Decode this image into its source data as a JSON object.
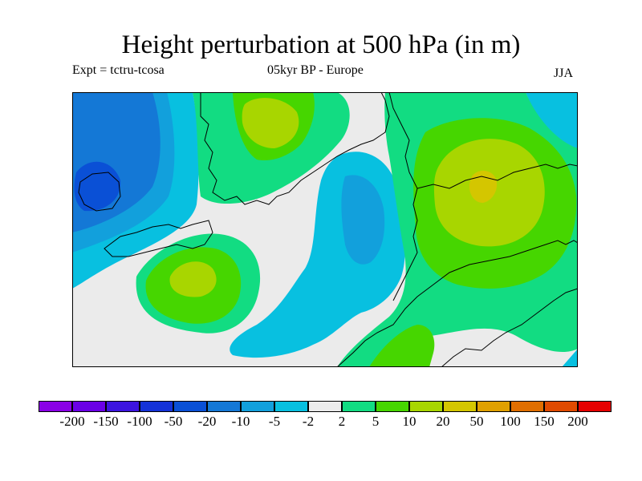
{
  "title": "Height perturbation at 500 hPa (in m)",
  "subtitle_left": "Expt = tctru-tcosa",
  "subtitle_center": "05kyr BP - Europe",
  "subtitle_right": "JJA",
  "colorbar": {
    "colors": [
      "#8a00e6",
      "#6a00e6",
      "#3c14e0",
      "#1432d8",
      "#0a50d6",
      "#1478d6",
      "#12a0dc",
      "#08c0e0",
      "#ebebeb",
      "#12dc82",
      "#46d600",
      "#a8d600",
      "#d4c600",
      "#e0a000",
      "#e06e00",
      "#e04a00",
      "#e60000"
    ],
    "labels": [
      "-200",
      "-150",
      "-100",
      "-50",
      "-20",
      "-10",
      "-5",
      "-2",
      "2",
      "5",
      "10",
      "20",
      "50",
      "100",
      "150",
      "200"
    ]
  },
  "map": {
    "region": "Europe",
    "season": "JJA",
    "field": "500 hPa height perturbation",
    "units": "m"
  }
}
